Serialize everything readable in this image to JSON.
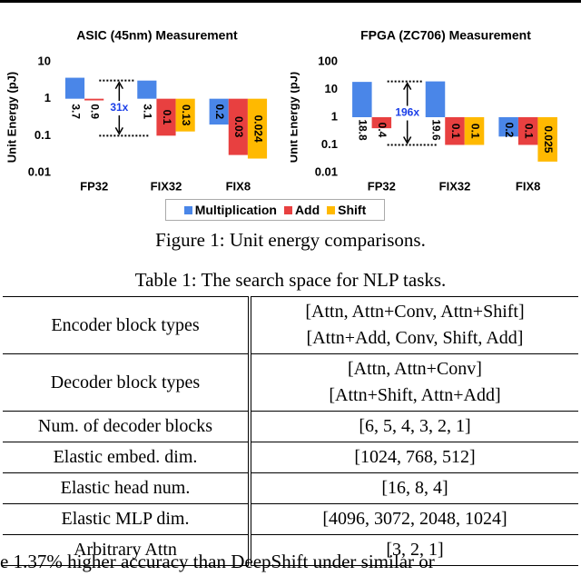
{
  "chart_data": [
    {
      "type": "bar",
      "title": "ASIC (45nm) Measurement",
      "y_label": "Unit Energy (pJ)",
      "log_scale": true,
      "categories": [
        "FP32",
        "FIX32",
        "FIX8"
      ],
      "series": [
        {
          "name": "Multiplication",
          "color": "#4a86e8",
          "values": [
            3.7,
            3.1,
            0.2
          ]
        },
        {
          "name": "Add",
          "color": "#e84040",
          "values": [
            0.9,
            0.1,
            0.03
          ]
        },
        {
          "name": "Shift",
          "color": "#ffb900",
          "values": [
            null,
            0.13,
            0.024
          ]
        }
      ],
      "ylim": [
        0.01,
        10
      ],
      "yticks": [
        0.01,
        0.1,
        1,
        10
      ],
      "annotation": "31x"
    },
    {
      "type": "bar",
      "title": "FPGA (ZC706) Measurement",
      "y_label": "Unit Energy (pJ)",
      "log_scale": true,
      "categories": [
        "FP32",
        "FIX32",
        "FIX8"
      ],
      "series": [
        {
          "name": "Multiplication",
          "color": "#4a86e8",
          "values": [
            18.8,
            19.6,
            0.2
          ]
        },
        {
          "name": "Add",
          "color": "#e84040",
          "values": [
            0.4,
            0.1,
            0.1
          ]
        },
        {
          "name": "Shift",
          "color": "#ffb900",
          "values": [
            null,
            0.1,
            0.025
          ]
        }
      ],
      "ylim": [
        0.01,
        100
      ],
      "yticks": [
        0.01,
        0.1,
        1,
        10,
        100
      ],
      "annotation": "196x"
    }
  ],
  "figure_caption": "Figure 1: Unit energy comparisons.",
  "table": {
    "caption": "Table 1: The search space for NLP tasks.",
    "rows": [
      [
        [
          "Encoder block types"
        ],
        [
          "[Attn, Attn+Conv, Attn+Shift]",
          "[Attn+Add, Conv, Shift, Add]"
        ]
      ],
      [
        [
          "Decoder block types"
        ],
        [
          "[Attn, Attn+Conv]",
          "[Attn+Shift, Attn+Add]"
        ]
      ],
      [
        [
          "Num. of decoder blocks"
        ],
        [
          "[6, 5, 4, 3, 2, 1]"
        ]
      ],
      [
        [
          "Elastic embed. dim."
        ],
        [
          "[1024, 768, 512]"
        ]
      ],
      [
        [
          "Elastic head num."
        ],
        [
          "[16, 8, 4]"
        ]
      ],
      [
        [
          "Elastic MLP dim."
        ],
        [
          "[4096, 3072, 2048, 1024]"
        ]
      ],
      [
        [
          "Arbitrary Attn"
        ],
        [
          "[3, 2, 1]"
        ]
      ]
    ]
  },
  "body_text": "e 1.37% higher accuracy than DeepShift under similar or"
}
